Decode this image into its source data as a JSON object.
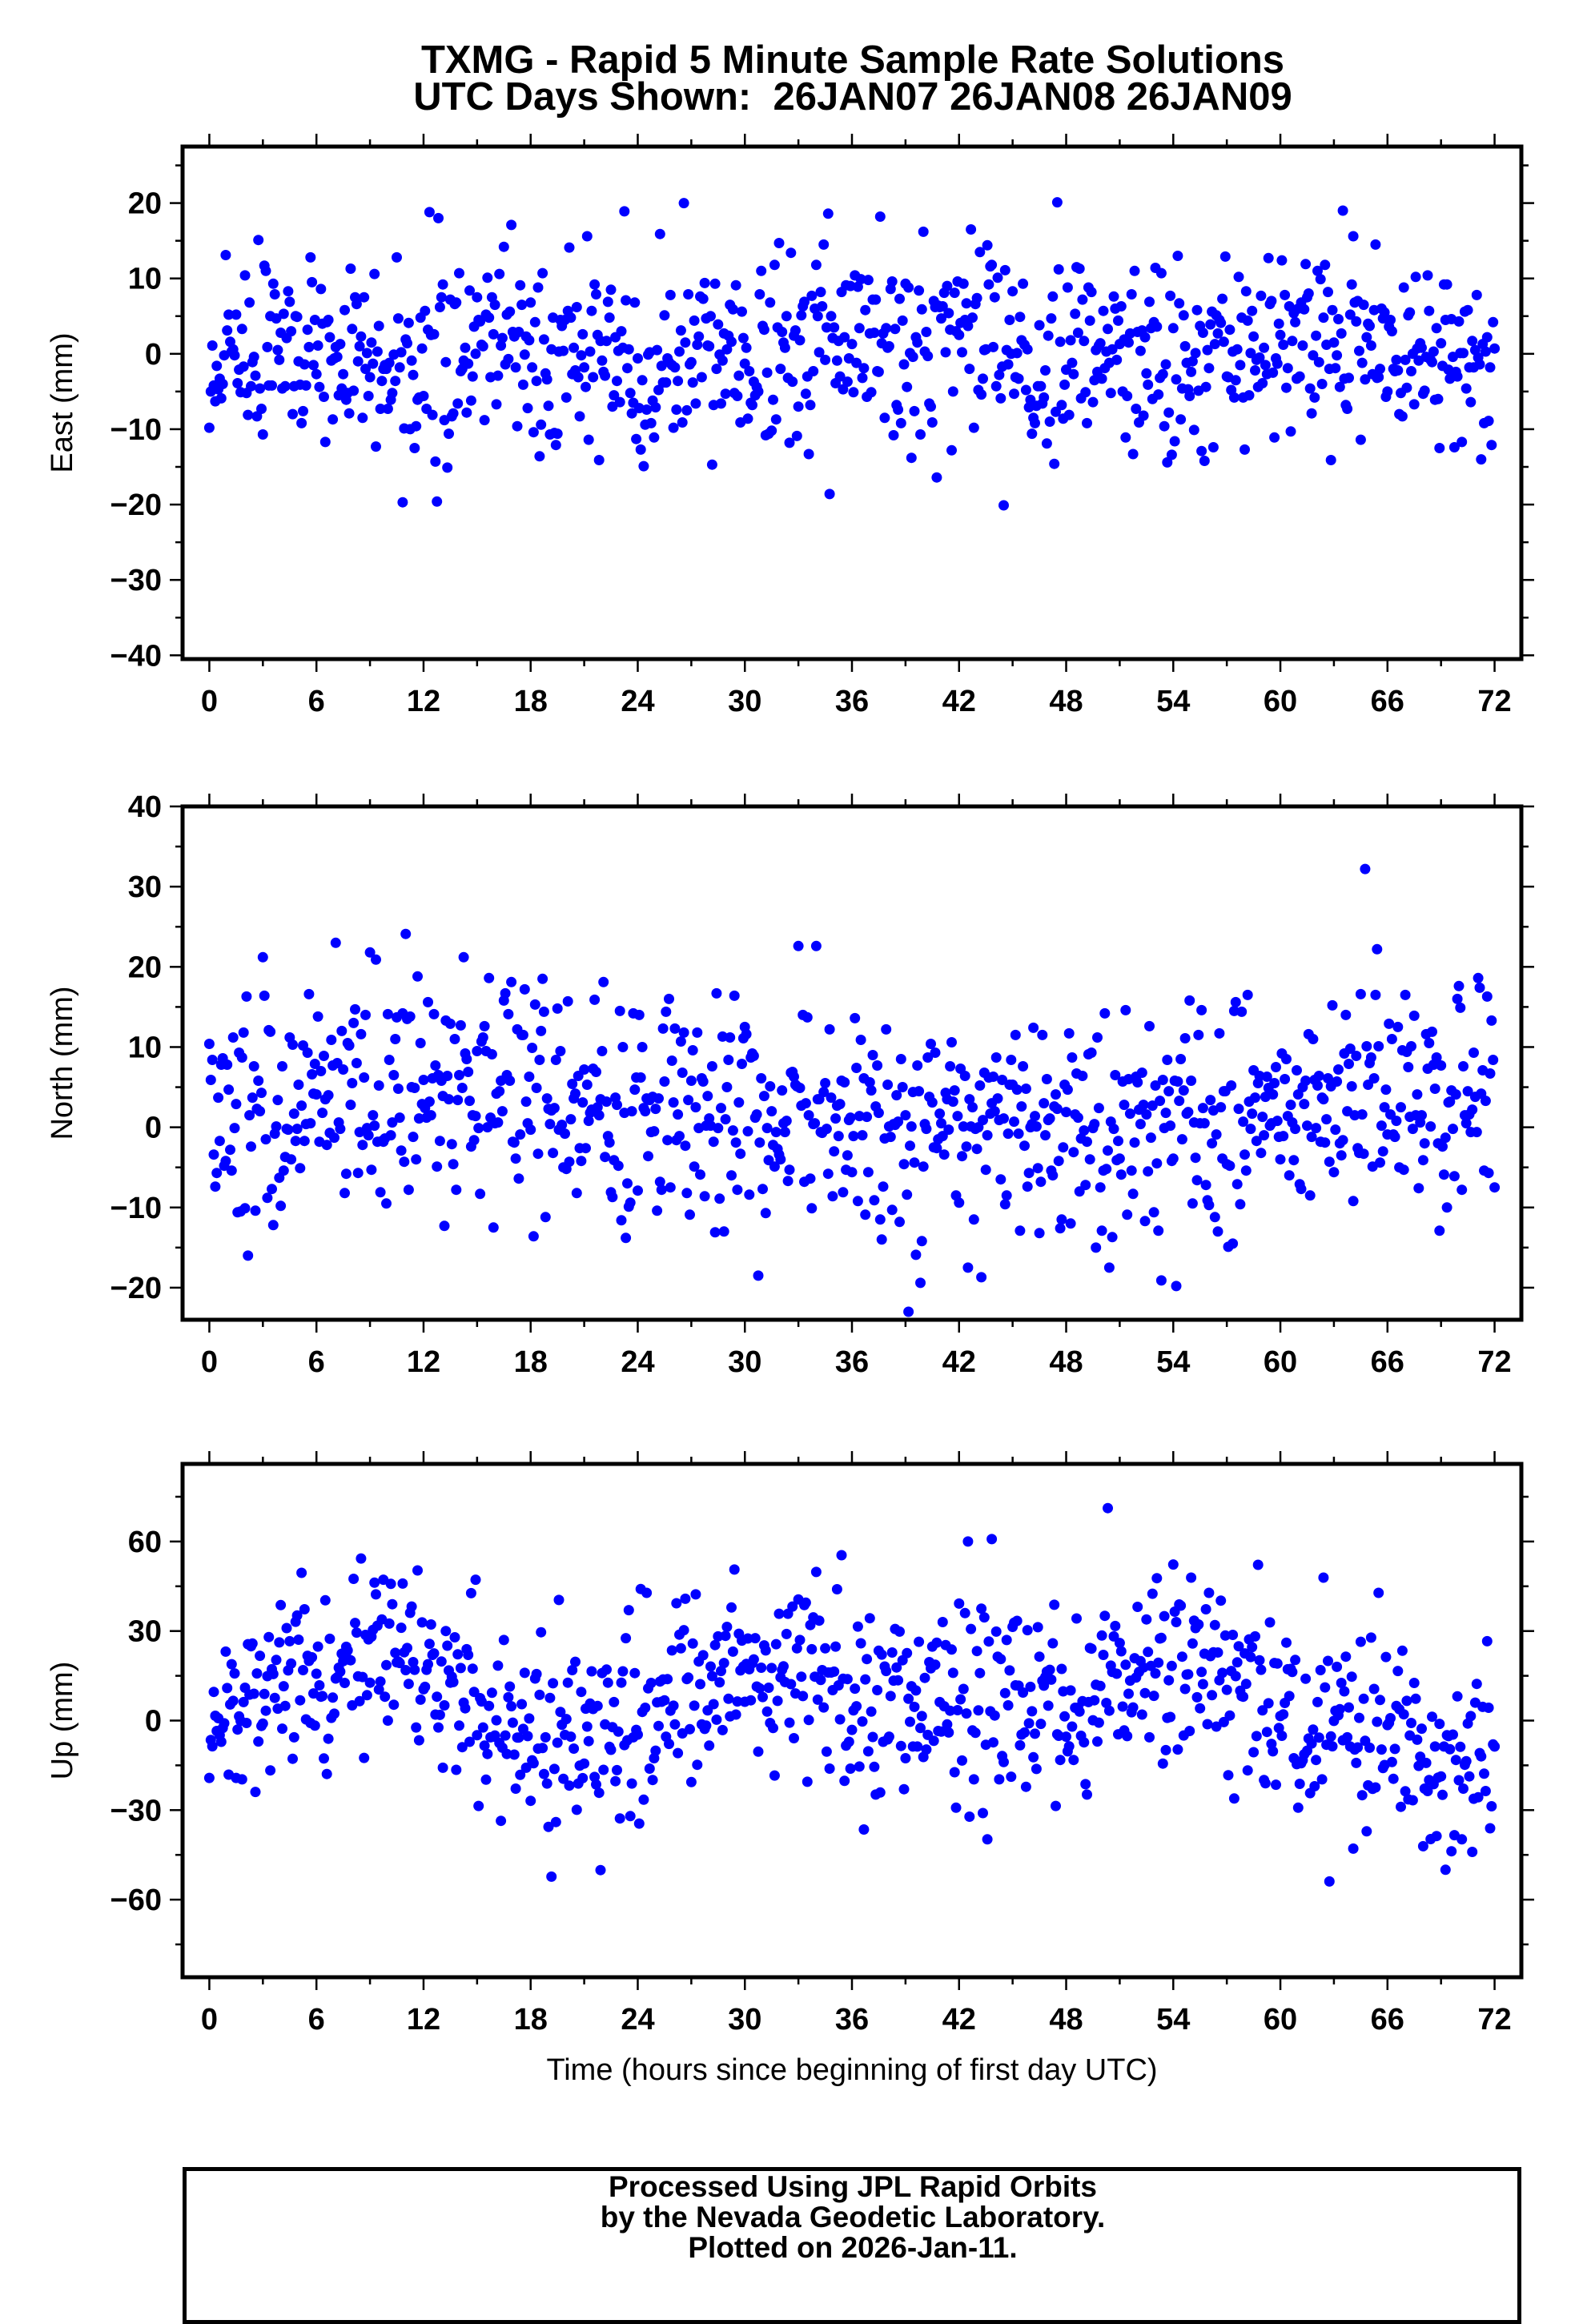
{
  "title": {
    "line1": "TXMG - Rapid 5 Minute Sample Rate Solutions",
    "line2": "UTC Days Shown:  26JAN07 26JAN08 26JAN09"
  },
  "colors": {
    "points": "#0000ff",
    "frame": "#000000",
    "background": "#ffffff"
  },
  "chart_data": [
    {
      "type": "scatter",
      "ylabel": "East (mm)",
      "xlim": [
        -1.5,
        73.5
      ],
      "ylim": [
        -40.5,
        27.5
      ],
      "xticks": [
        0,
        6,
        12,
        18,
        24,
        30,
        36,
        42,
        48,
        54,
        60,
        66,
        72
      ],
      "yticks": [
        20,
        10,
        0,
        -10,
        -20,
        -30,
        -40
      ],
      "series": [
        {
          "x": [],
          "y": []
        }
      ]
    },
    {
      "type": "scatter",
      "ylabel": "North (mm)",
      "xlim": [
        -1.5,
        73.5
      ],
      "ylim": [
        -24,
        40
      ],
      "xticks": [
        0,
        6,
        12,
        18,
        24,
        30,
        36,
        42,
        48,
        54,
        60,
        66,
        72
      ],
      "yticks": [
        40,
        30,
        20,
        10,
        0,
        -10,
        -20
      ],
      "series": [
        {
          "x": [],
          "y": []
        }
      ]
    },
    {
      "type": "scatter",
      "ylabel": "Up (mm)",
      "xlabel": "Time (hours since beginning of first day UTC)",
      "xlim": [
        -1.5,
        73.5
      ],
      "ylim": [
        -86,
        86
      ],
      "xticks": [
        0,
        6,
        12,
        18,
        24,
        30,
        36,
        42,
        48,
        54,
        60,
        66,
        72
      ],
      "yticks": [
        60,
        30,
        0,
        -30,
        -60
      ],
      "series": [
        {
          "x": [],
          "y": []
        }
      ]
    }
  ],
  "footer": {
    "line1": "Processed Using JPL Rapid Orbits",
    "line2": "by the Nevada Geodetic Laboratory.",
    "line3": "Plotted on 2026-Jan-11."
  }
}
